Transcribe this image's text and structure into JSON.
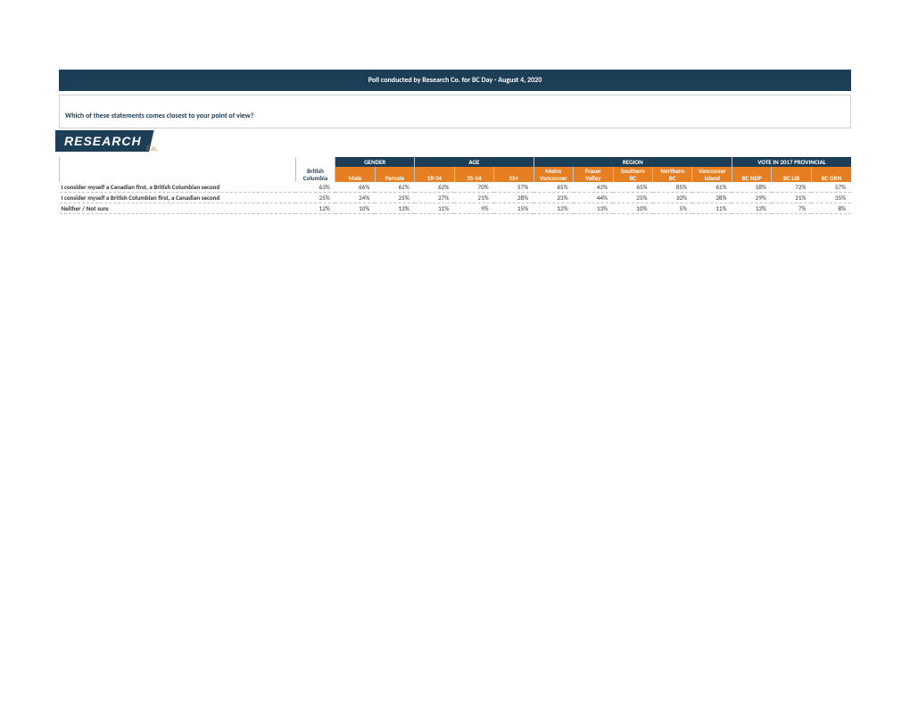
{
  "title": "Poll conducted by Research Co. for BC Day - August 4, 2020",
  "question": "Which of these statements comes closest to your point of view?",
  "logo_main": "RESEARCH",
  "logo_sub": "Co.",
  "colors": {
    "header_bg": "#1d3e57",
    "accent_bg": "#e67e22",
    "header_text": "#ffffff",
    "body_text": "#333333",
    "border_light": "#c0c0c0",
    "border_dash": "#aaaaaa"
  },
  "categories": {
    "gender": "GENDER",
    "age": "AGE",
    "region": "REGION",
    "vote": "VOTE IN 2017 PROVINCIAL"
  },
  "bc_column": "British Columbia",
  "subcolumns": {
    "male": "Male",
    "female": "Female",
    "a18_34": "18-34",
    "a35_54": "35-54",
    "a55": "55+",
    "metro": "Metro Vancouver",
    "fraser": "Fraser Valley",
    "southern": "Southern BC",
    "northern": "Northern BC",
    "island": "Vancouver Island",
    "ndp": "BC NDP",
    "lib": "BC LIB",
    "grn": "BC GRN"
  },
  "rows": [
    {
      "label": "I consider myself a Canadian first, a British Columbian second",
      "vals": [
        "63%",
        "66%",
        "62%",
        "62%",
        "70%",
        "57%",
        "65%",
        "42%",
        "65%",
        "85%",
        "61%",
        "58%",
        "72%",
        "57%"
      ]
    },
    {
      "label": "I consider myself a British Columbian first, a Canadian second",
      "vals": [
        "25%",
        "24%",
        "25%",
        "27%",
        "21%",
        "28%",
        "23%",
        "44%",
        "25%",
        "10%",
        "28%",
        "29%",
        "21%",
        "35%"
      ]
    },
    {
      "label": "Neither / Not sure",
      "vals": [
        "12%",
        "10%",
        "13%",
        "11%",
        "9%",
        "15%",
        "12%",
        "13%",
        "10%",
        "5%",
        "11%",
        "13%",
        "7%",
        "8%"
      ]
    }
  ]
}
